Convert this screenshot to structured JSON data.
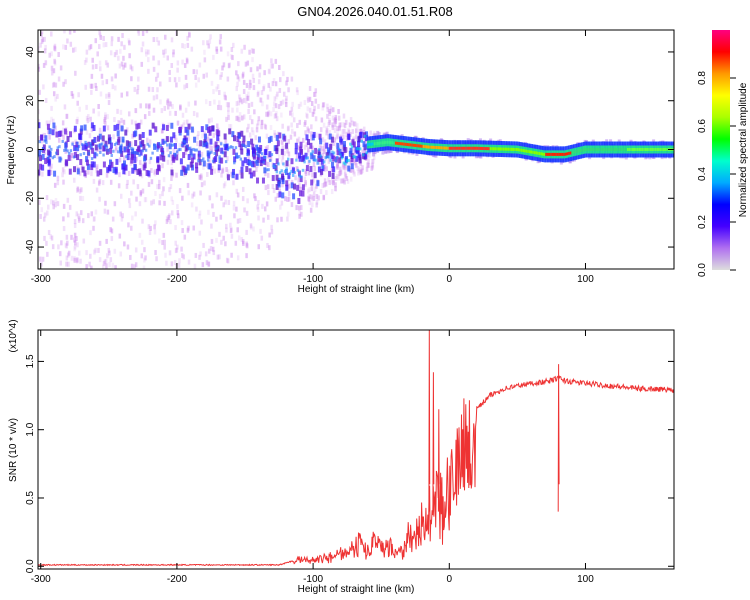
{
  "title": "GN04.2026.040.01.51.R08",
  "colors": {
    "background": "#ffffff",
    "axis": "#000000",
    "snr_line": "#ee3333",
    "spectrogram_scatter": "#cc88ee",
    "spectrogram_core": "#7722dd"
  },
  "colorbar": {
    "label": "Normalized spectral amplitude",
    "ticks": [
      "0.0",
      "0.2",
      "0.4",
      "0.6",
      "0.8"
    ],
    "tick_values": [
      0.0,
      0.2,
      0.4,
      0.6,
      0.8
    ],
    "range": [
      0,
      1
    ],
    "colormap": [
      "#dddddd",
      "#b070f0",
      "#4400ff",
      "#0000ff",
      "#00aaff",
      "#00ffcc",
      "#00ff00",
      "#aaff00",
      "#ffff00",
      "#ff9900",
      "#ff0000",
      "#ff0080"
    ]
  },
  "chart_data": [
    {
      "type": "heatmap",
      "panel": "spectrogram",
      "xlabel": "Height of straight line (km)",
      "ylabel": "Frequency (Hz)",
      "xlim": [
        -302,
        165
      ],
      "ylim": [
        -49,
        49
      ],
      "xticks": [
        -300,
        -200,
        -100,
        0,
        100
      ],
      "xtick_labels": [
        "-300",
        "-200",
        "-100",
        "0",
        "100"
      ],
      "yticks": [
        -40,
        -20,
        0,
        20,
        40
      ],
      "ytick_labels": [
        "-40",
        "-20",
        "0",
        "20",
        "40"
      ],
      "grid": false,
      "band_center_hz": {
        "x": [
          -300,
          -250,
          -200,
          -150,
          -130,
          -110,
          -100,
          -80,
          -60,
          -45,
          -30,
          -15,
          0,
          20,
          50,
          70,
          85,
          100,
          130,
          165
        ],
        "y": [
          0,
          0,
          0,
          -2,
          -6,
          -8,
          -4,
          -3,
          2,
          3,
          2,
          1,
          0.5,
          0.5,
          0,
          -2,
          -2,
          0,
          0,
          0
        ]
      },
      "band_halfwidth_hz": {
        "x": [
          -300,
          -150,
          -110,
          -80,
          -60,
          -40,
          0,
          50,
          100,
          165
        ],
        "y": [
          10,
          10,
          14,
          8,
          5,
          3,
          3,
          3,
          3,
          3
        ]
      },
      "scatter_extent_hz": {
        "x": [
          -300,
          -200,
          -150,
          -130,
          -120,
          -100,
          -80,
          -60
        ],
        "y": [
          49,
          49,
          45,
          40,
          30,
          25,
          15,
          8
        ]
      }
    },
    {
      "type": "line",
      "panel": "snr",
      "xlabel": "Height of straight line (km)",
      "ylabel": "SNR (10 * v/v)",
      "yscale_label": "(x10^4)",
      "xlim": [
        -302,
        165
      ],
      "ylim": [
        -0.02,
        1.73
      ],
      "xticks": [
        -300,
        -200,
        -100,
        0,
        100
      ],
      "xtick_labels": [
        "-300",
        "-200",
        "-100",
        "0",
        "100"
      ],
      "yticks": [
        0.0,
        0.5,
        1.0,
        1.5
      ],
      "ytick_labels": [
        "0.0",
        "0.5",
        "1.0",
        "1.5"
      ],
      "grid": false,
      "series": [
        {
          "color": "#ee3333",
          "x": [
            -302,
            -250,
            -200,
            -150,
            -125,
            -115,
            -110,
            -100,
            -90,
            -80,
            -75,
            -70,
            -65,
            -60,
            -55,
            -50,
            -45,
            -40,
            -35,
            -30,
            -25,
            -20,
            -15,
            -12,
            -10,
            -5,
            0,
            5,
            10,
            15,
            20,
            25,
            30,
            40,
            50,
            60,
            70,
            75,
            80,
            85,
            90,
            100,
            110,
            120,
            130,
            140,
            150,
            165
          ],
          "y": [
            0.01,
            0.01,
            0.01,
            0.01,
            0.01,
            0.04,
            0.07,
            0.06,
            0.08,
            0.14,
            0.1,
            0.22,
            0.2,
            0.15,
            0.25,
            0.18,
            0.22,
            0.15,
            0.12,
            0.3,
            0.35,
            0.45,
            0.55,
            0.7,
            0.72,
            0.62,
            0.75,
            0.9,
            1.05,
            1.1,
            1.15,
            1.2,
            1.25,
            1.3,
            1.32,
            1.34,
            1.35,
            1.36,
            1.38,
            1.36,
            1.35,
            1.34,
            1.33,
            1.32,
            1.31,
            1.3,
            1.3,
            1.29
          ]
        }
      ],
      "spikes": [
        {
          "x": -15,
          "y": 1.73
        },
        {
          "x": -12,
          "y": 1.42
        },
        {
          "x": -8,
          "y": 1.15
        },
        {
          "x": 80,
          "y": 1.48
        }
      ]
    }
  ]
}
